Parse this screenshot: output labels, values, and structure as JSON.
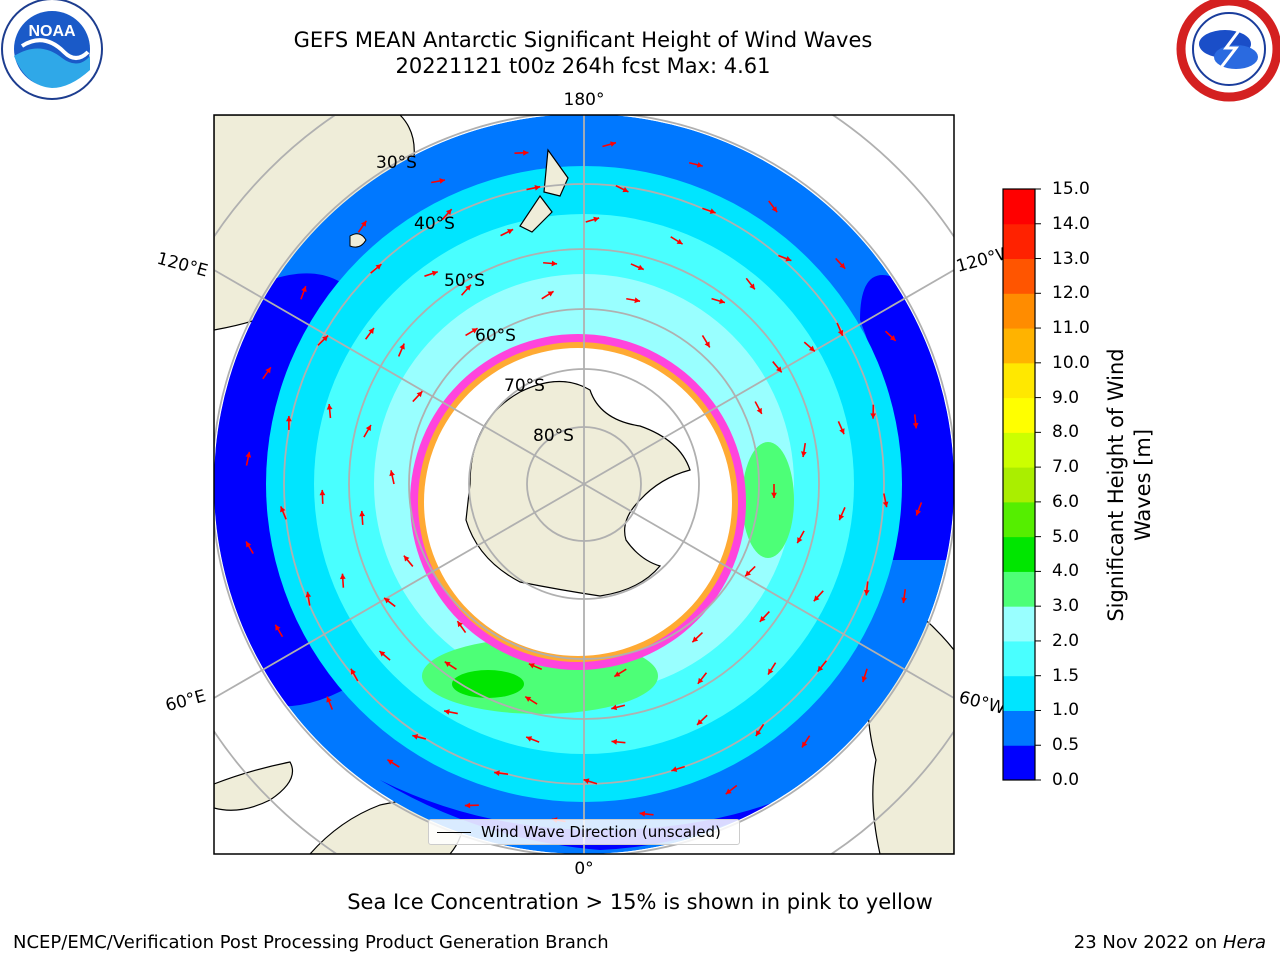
{
  "header": {
    "title_line1": "GEFS MEAN Antarctic Significant Height of Wind Waves",
    "title_line2": "20221121 t00z 264h fcst   Max: 4.61"
  },
  "logos": {
    "left": {
      "name": "noara-logo",
      "text": "NOAA"
    },
    "right": {
      "name": "nws-logo"
    }
  },
  "map": {
    "longitude_labels": {
      "top": "180°",
      "bottom": "0°",
      "upper_left": "120°E",
      "upper_right": "120°W",
      "lower_left": "60°E",
      "lower_right": "60°W"
    },
    "latitude_labels": [
      "30°S",
      "40°S",
      "50°S",
      "60°S",
      "70°S",
      "80°S"
    ],
    "legend_label": "Wind Wave Direction (unscaled)",
    "colors": {
      "land": "#efedd9",
      "ice": "#ffffff",
      "ice_edge_pink": "#ff44dd",
      "ice_edge_orange": "#ffaa33",
      "arrows": "#ff0000",
      "grid": "#b0b0b0"
    }
  },
  "colorbar": {
    "title_line1": "Significant Height of Wind",
    "title_line2": "Waves [m]",
    "ticks": [
      "15.0",
      "14.0",
      "13.0",
      "12.0",
      "11.0",
      "10.0",
      "9.0",
      "8.0",
      "7.0",
      "6.0",
      "5.0",
      "4.0",
      "3.0",
      "2.0",
      "1.5",
      "1.0",
      "0.5",
      "0.0"
    ],
    "colors_bottom_to_top": [
      "#0000ff",
      "#0078ff",
      "#00e5ff",
      "#49ffff",
      "#99ffff",
      "#4dff77",
      "#00e600",
      "#55ee00",
      "#aaee00",
      "#ccff00",
      "#ffff00",
      "#ffe800",
      "#ffb300",
      "#ff8c00",
      "#ff5500",
      "#ff2200",
      "#ff0000"
    ]
  },
  "footer": {
    "caption": "Sea Ice Concentration > 15% is shown in pink to yellow",
    "left": "NCEP/EMC/Verification Post Processing Product Generation Branch",
    "right_date": "23 Nov 2022 on ",
    "right_system": "Hera"
  }
}
